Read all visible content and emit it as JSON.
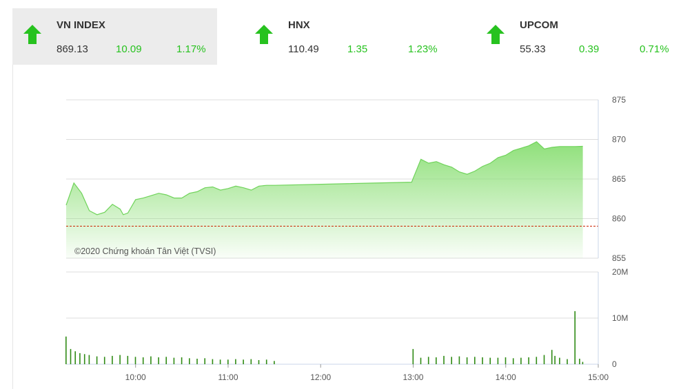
{
  "indices": [
    {
      "name": "VN INDEX",
      "price": "869.13",
      "change": "10.09",
      "percent": "1.17%",
      "direction": "up",
      "active": true
    },
    {
      "name": "HNX",
      "price": "110.49",
      "change": "1.35",
      "percent": "1.23%",
      "direction": "up",
      "active": false
    },
    {
      "name": "UPCOM",
      "price": "55.33",
      "change": "0.39",
      "percent": "0.71%",
      "direction": "up",
      "active": false
    }
  ],
  "colors": {
    "up": "#27c21f",
    "area_top": "#8fe07a",
    "reference": "#cc2200",
    "volume": "#2f8a14"
  },
  "chart_data": {
    "type": "area",
    "watermark": "©2020 Chứng khoán Tân Việt (TVSI)",
    "x_ticks": [
      "10:00",
      "11:00",
      "12:00",
      "13:00",
      "14:00",
      "15:00"
    ],
    "price_ticks": [
      875,
      870,
      865,
      860,
      855
    ],
    "price_ylim": [
      855,
      875
    ],
    "reference_price": 859.04,
    "volume_ticks": [
      "20M",
      "10M",
      "0"
    ],
    "volume_ylim": [
      0,
      20
    ],
    "series": [
      {
        "name": "price",
        "points": [
          [
            "09:15",
            861.7
          ],
          [
            "09:20",
            864.5
          ],
          [
            "09:25",
            863.2
          ],
          [
            "09:30",
            861.0
          ],
          [
            "09:35",
            860.5
          ],
          [
            "09:40",
            860.8
          ],
          [
            "09:45",
            861.8
          ],
          [
            "09:50",
            861.2
          ],
          [
            "09:52",
            860.5
          ],
          [
            "09:55",
            860.7
          ],
          [
            "10:00",
            862.4
          ],
          [
            "10:05",
            862.6
          ],
          [
            "10:10",
            862.9
          ],
          [
            "10:15",
            863.2
          ],
          [
            "10:20",
            863.0
          ],
          [
            "10:25",
            862.6
          ],
          [
            "10:30",
            862.6
          ],
          [
            "10:35",
            863.2
          ],
          [
            "10:40",
            863.4
          ],
          [
            "10:45",
            863.9
          ],
          [
            "10:50",
            864.0
          ],
          [
            "10:55",
            863.6
          ],
          [
            "11:00",
            863.8
          ],
          [
            "11:05",
            864.1
          ],
          [
            "11:10",
            863.9
          ],
          [
            "11:15",
            863.6
          ],
          [
            "11:20",
            864.1
          ],
          [
            "11:25",
            864.2
          ],
          [
            "11:30",
            864.2
          ],
          [
            "12:59",
            864.6
          ],
          [
            "13:05",
            867.5
          ],
          [
            "13:10",
            867.0
          ],
          [
            "13:15",
            867.2
          ],
          [
            "13:20",
            866.8
          ],
          [
            "13:25",
            866.5
          ],
          [
            "13:30",
            865.9
          ],
          [
            "13:35",
            865.6
          ],
          [
            "13:40",
            866.0
          ],
          [
            "13:45",
            866.6
          ],
          [
            "13:50",
            867.0
          ],
          [
            "13:55",
            867.7
          ],
          [
            "14:00",
            868.0
          ],
          [
            "14:05",
            868.6
          ],
          [
            "14:10",
            868.9
          ],
          [
            "14:15",
            869.2
          ],
          [
            "14:20",
            869.7
          ],
          [
            "14:25",
            868.8
          ],
          [
            "14:30",
            869.0
          ],
          [
            "14:35",
            869.1
          ],
          [
            "14:40",
            869.1
          ],
          [
            "14:45",
            869.1
          ],
          [
            "14:50",
            869.13
          ]
        ]
      },
      {
        "name": "volume",
        "unit": "M",
        "points": [
          [
            "09:15",
            6.0
          ],
          [
            "09:18",
            3.3
          ],
          [
            "09:21",
            2.8
          ],
          [
            "09:24",
            2.4
          ],
          [
            "09:27",
            2.2
          ],
          [
            "09:30",
            2.0
          ],
          [
            "09:35",
            1.7
          ],
          [
            "09:40",
            1.6
          ],
          [
            "09:45",
            1.8
          ],
          [
            "09:50",
            2.0
          ],
          [
            "09:55",
            1.8
          ],
          [
            "10:00",
            1.6
          ],
          [
            "10:05",
            1.5
          ],
          [
            "10:10",
            1.7
          ],
          [
            "10:15",
            1.5
          ],
          [
            "10:20",
            1.6
          ],
          [
            "10:25",
            1.4
          ],
          [
            "10:30",
            1.5
          ],
          [
            "10:35",
            1.3
          ],
          [
            "10:40",
            1.2
          ],
          [
            "10:45",
            1.3
          ],
          [
            "10:50",
            1.1
          ],
          [
            "10:55",
            1.0
          ],
          [
            "11:00",
            1.0
          ],
          [
            "11:05",
            1.1
          ],
          [
            "11:10",
            1.0
          ],
          [
            "11:15",
            1.1
          ],
          [
            "11:20",
            0.9
          ],
          [
            "11:25",
            1.0
          ],
          [
            "11:30",
            0.7
          ],
          [
            "13:00",
            3.3
          ],
          [
            "13:05",
            1.4
          ],
          [
            "13:10",
            1.6
          ],
          [
            "13:15",
            1.5
          ],
          [
            "13:20",
            1.8
          ],
          [
            "13:25",
            1.6
          ],
          [
            "13:30",
            1.7
          ],
          [
            "13:35",
            1.5
          ],
          [
            "13:40",
            1.6
          ],
          [
            "13:45",
            1.5
          ],
          [
            "13:50",
            1.4
          ],
          [
            "13:55",
            1.4
          ],
          [
            "14:00",
            1.5
          ],
          [
            "14:05",
            1.3
          ],
          [
            "14:10",
            1.4
          ],
          [
            "14:15",
            1.5
          ],
          [
            "14:20",
            1.6
          ],
          [
            "14:25",
            2.0
          ],
          [
            "14:30",
            3.1
          ],
          [
            "14:32",
            1.8
          ],
          [
            "14:35",
            1.4
          ],
          [
            "14:40",
            1.1
          ],
          [
            "14:45",
            11.5
          ],
          [
            "14:48",
            1.2
          ],
          [
            "14:50",
            0.5
          ]
        ]
      }
    ]
  }
}
